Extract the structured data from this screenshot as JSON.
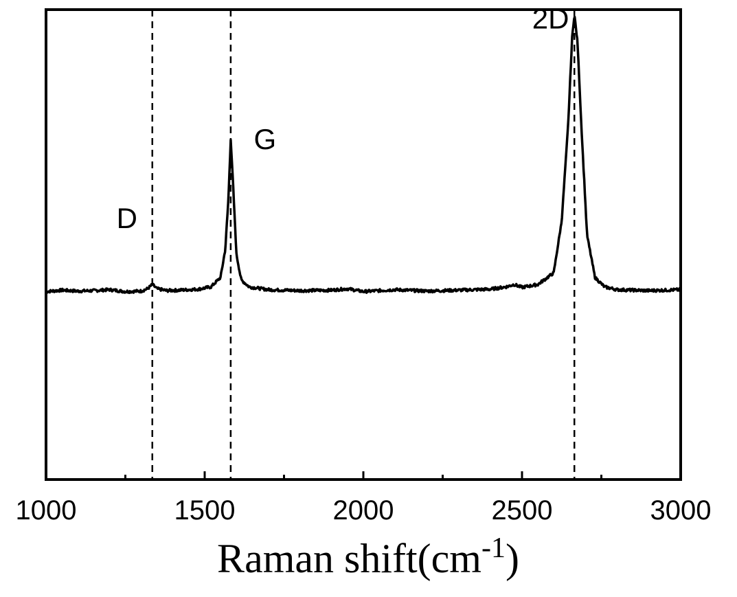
{
  "chart_data": {
    "type": "line",
    "title": "",
    "xlabel": "Raman shift(cm",
    "xlabel_sup": "-1",
    "xlabel_close": ")",
    "ylabel": "",
    "xlim": [
      1000,
      3000
    ],
    "ylim": [
      0,
      1
    ],
    "grid": false,
    "x_ticks": [
      1000,
      1500,
      2000,
      2500,
      3000
    ],
    "x_tick_labels": [
      "1000",
      "1500",
      "2000",
      "2500",
      "3000"
    ],
    "x_minor_ticks": [
      1250,
      1750,
      2250,
      2750
    ],
    "reference_lines": [
      {
        "name": "D",
        "x": 1335
      },
      {
        "name": "G",
        "x": 1582
      },
      {
        "name": "2D",
        "x": 2665
      }
    ],
    "annotations": [
      {
        "text": "D",
        "x": 1255,
        "y": 0.535
      },
      {
        "text": "G",
        "x": 1690,
        "y": 0.703
      },
      {
        "text": "2D",
        "x": 2590,
        "y": 0.96
      }
    ],
    "series": [
      {
        "baseline": 0.403,
        "points": [
          [
            1000,
            0.4
          ],
          [
            1050,
            0.403
          ],
          [
            1100,
            0.401
          ],
          [
            1150,
            0.402
          ],
          [
            1200,
            0.404
          ],
          [
            1250,
            0.4
          ],
          [
            1300,
            0.401
          ],
          [
            1320,
            0.406
          ],
          [
            1335,
            0.415
          ],
          [
            1350,
            0.406
          ],
          [
            1380,
            0.402
          ],
          [
            1420,
            0.403
          ],
          [
            1480,
            0.405
          ],
          [
            1520,
            0.41
          ],
          [
            1550,
            0.43
          ],
          [
            1565,
            0.49
          ],
          [
            1575,
            0.6
          ],
          [
            1582,
            0.725
          ],
          [
            1590,
            0.62
          ],
          [
            1600,
            0.48
          ],
          [
            1615,
            0.425
          ],
          [
            1640,
            0.41
          ],
          [
            1700,
            0.404
          ],
          [
            1800,
            0.402
          ],
          [
            1900,
            0.403
          ],
          [
            1950,
            0.406
          ],
          [
            2000,
            0.4
          ],
          [
            2100,
            0.404
          ],
          [
            2200,
            0.401
          ],
          [
            2300,
            0.403
          ],
          [
            2400,
            0.405
          ],
          [
            2450,
            0.41
          ],
          [
            2475,
            0.415
          ],
          [
            2500,
            0.409
          ],
          [
            2550,
            0.415
          ],
          [
            2600,
            0.44
          ],
          [
            2625,
            0.55
          ],
          [
            2645,
            0.75
          ],
          [
            2658,
            0.94
          ],
          [
            2665,
            0.99
          ],
          [
            2675,
            0.93
          ],
          [
            2688,
            0.74
          ],
          [
            2705,
            0.52
          ],
          [
            2730,
            0.43
          ],
          [
            2760,
            0.41
          ],
          [
            2800,
            0.404
          ],
          [
            2900,
            0.402
          ],
          [
            3000,
            0.404
          ]
        ]
      }
    ]
  }
}
